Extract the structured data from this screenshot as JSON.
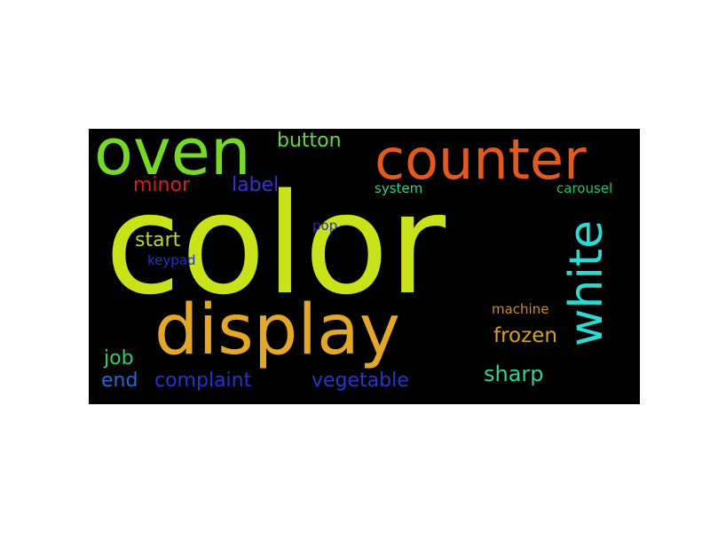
{
  "word_cloud": {
    "background": "#000000",
    "words": [
      {
        "text": "color",
        "color": "#c9e31a"
      },
      {
        "text": "display",
        "color": "#e3a72a"
      },
      {
        "text": "oven",
        "color": "#76d92a"
      },
      {
        "text": "counter",
        "color": "#e35a1f"
      },
      {
        "text": "white",
        "color": "#2ed9d2"
      },
      {
        "text": "button",
        "color": "#62d63a"
      },
      {
        "text": "minor",
        "color": "#d11f22"
      },
      {
        "text": "label",
        "color": "#3b2fd4"
      },
      {
        "text": "system",
        "color": "#2fd07e"
      },
      {
        "text": "carousel",
        "color": "#28c45a"
      },
      {
        "text": "pop",
        "color": "#2a2bb0"
      },
      {
        "text": "start",
        "color": "#b9d62f"
      },
      {
        "text": "keypad",
        "color": "#2233c9"
      },
      {
        "text": "machine",
        "color": "#d18b1c"
      },
      {
        "text": "frozen",
        "color": "#d6a21c"
      },
      {
        "text": "job",
        "color": "#2fd06b"
      },
      {
        "text": "sharp",
        "color": "#2ed39a"
      },
      {
        "text": "end",
        "color": "#2069d4"
      },
      {
        "text": "complaint",
        "color": "#2233d4"
      },
      {
        "text": "vegetable",
        "color": "#2438cc"
      }
    ]
  }
}
